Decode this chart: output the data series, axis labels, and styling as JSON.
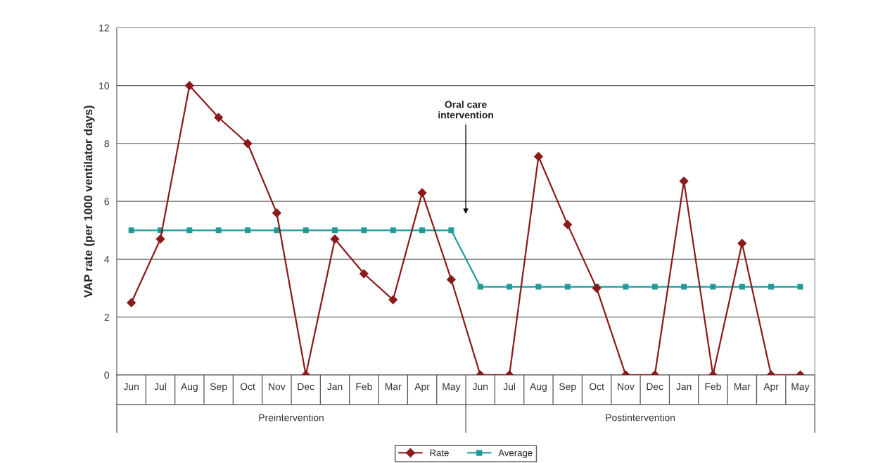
{
  "chart_data": {
    "type": "line",
    "ylabel": "VAP rate (per 1000 ventilator days)",
    "categories": [
      "Jun",
      "Jul",
      "Aug",
      "Sep",
      "Oct",
      "Nov",
      "Dec",
      "Jan",
      "Feb",
      "Mar",
      "Apr",
      "May",
      "Jun",
      "Jul",
      "Aug",
      "Sep",
      "Oct",
      "Nov",
      "Dec",
      "Jan",
      "Feb",
      "Mar",
      "Apr",
      "May"
    ],
    "series": [
      {
        "name": "Rate",
        "color": "#8b1a1a",
        "marker": "diamond",
        "values": [
          2.5,
          4.7,
          10,
          8.9,
          8,
          5.6,
          0,
          4.7,
          3.5,
          2.6,
          6.3,
          3.3,
          0,
          0,
          7.55,
          5.2,
          3.0,
          0,
          0,
          6.7,
          0,
          4.55,
          0,
          0
        ]
      },
      {
        "name": "Average",
        "color": "#1f9a9a",
        "marker": "square",
        "values": [
          5,
          5,
          5,
          5,
          5,
          5,
          5,
          5,
          5,
          5,
          5,
          5,
          3.05,
          3.05,
          3.05,
          3.05,
          3.05,
          3.05,
          3.05,
          3.05,
          3.05,
          3.05,
          3.05,
          3.05
        ]
      }
    ],
    "ylim": [
      0,
      12
    ],
    "yticks": [
      0,
      2,
      4,
      6,
      8,
      10,
      12
    ],
    "grid": "y",
    "legend": "bottom",
    "line_style": "solid",
    "annotations": [
      "Oral care\nintervention",
      "Preintervention",
      "Postintervention"
    ]
  }
}
